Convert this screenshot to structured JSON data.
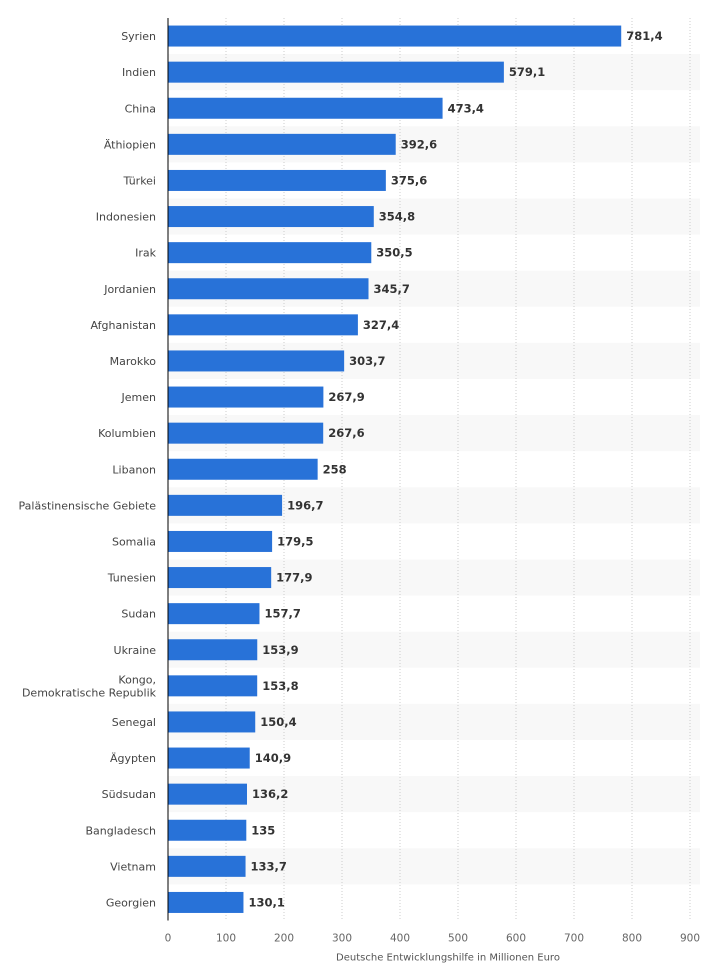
{
  "chart_data": {
    "type": "bar",
    "orientation": "horizontal",
    "categories": [
      "Syrien",
      "Indien",
      "China",
      "Äthiopien",
      "Türkei",
      "Indonesien",
      "Irak",
      "Jordanien",
      "Afghanistan",
      "Marokko",
      "Jemen",
      "Kolumbien",
      "Libanon",
      "Palästinensische Gebiete",
      "Somalia",
      "Tunesien",
      "Sudan",
      "Ukraine",
      "Kongo,\nDemokratische Republik",
      "Senegal",
      "Ägypten",
      "Südsudan",
      "Bangladesch",
      "Vietnam",
      "Georgien"
    ],
    "values": [
      781.4,
      579.1,
      473.4,
      392.6,
      375.6,
      354.8,
      350.5,
      345.7,
      327.4,
      303.7,
      267.9,
      267.6,
      258,
      196.7,
      179.5,
      177.9,
      157.7,
      153.9,
      153.8,
      150.4,
      140.9,
      136.2,
      135,
      133.7,
      130.1
    ],
    "value_labels": [
      "781,4",
      "579,1",
      "473,4",
      "392,6",
      "375,6",
      "354,8",
      "350,5",
      "345,7",
      "327,4",
      "303,7",
      "267,9",
      "267,6",
      "258",
      "196,7",
      "179,5",
      "177,9",
      "157,7",
      "153,9",
      "153,8",
      "150,4",
      "140,9",
      "136,2",
      "135",
      "133,7",
      "130,1"
    ],
    "xlim": [
      0,
      900
    ],
    "xticks": [
      0,
      100,
      200,
      300,
      400,
      500,
      600,
      700,
      800,
      900
    ],
    "xtick_labels": [
      "0",
      "100",
      "200",
      "300",
      "400",
      "500",
      "600",
      "700",
      "800",
      "900"
    ],
    "xlabel": "Deutsche Entwicklungshilfe in Millionen Euro",
    "ylabel": "",
    "title": "",
    "grid": true,
    "legend": "none",
    "colors": {
      "bar": "#2872d8",
      "band": "#f8f8f8",
      "grid": "#cccccc",
      "axis": "#000000"
    }
  }
}
